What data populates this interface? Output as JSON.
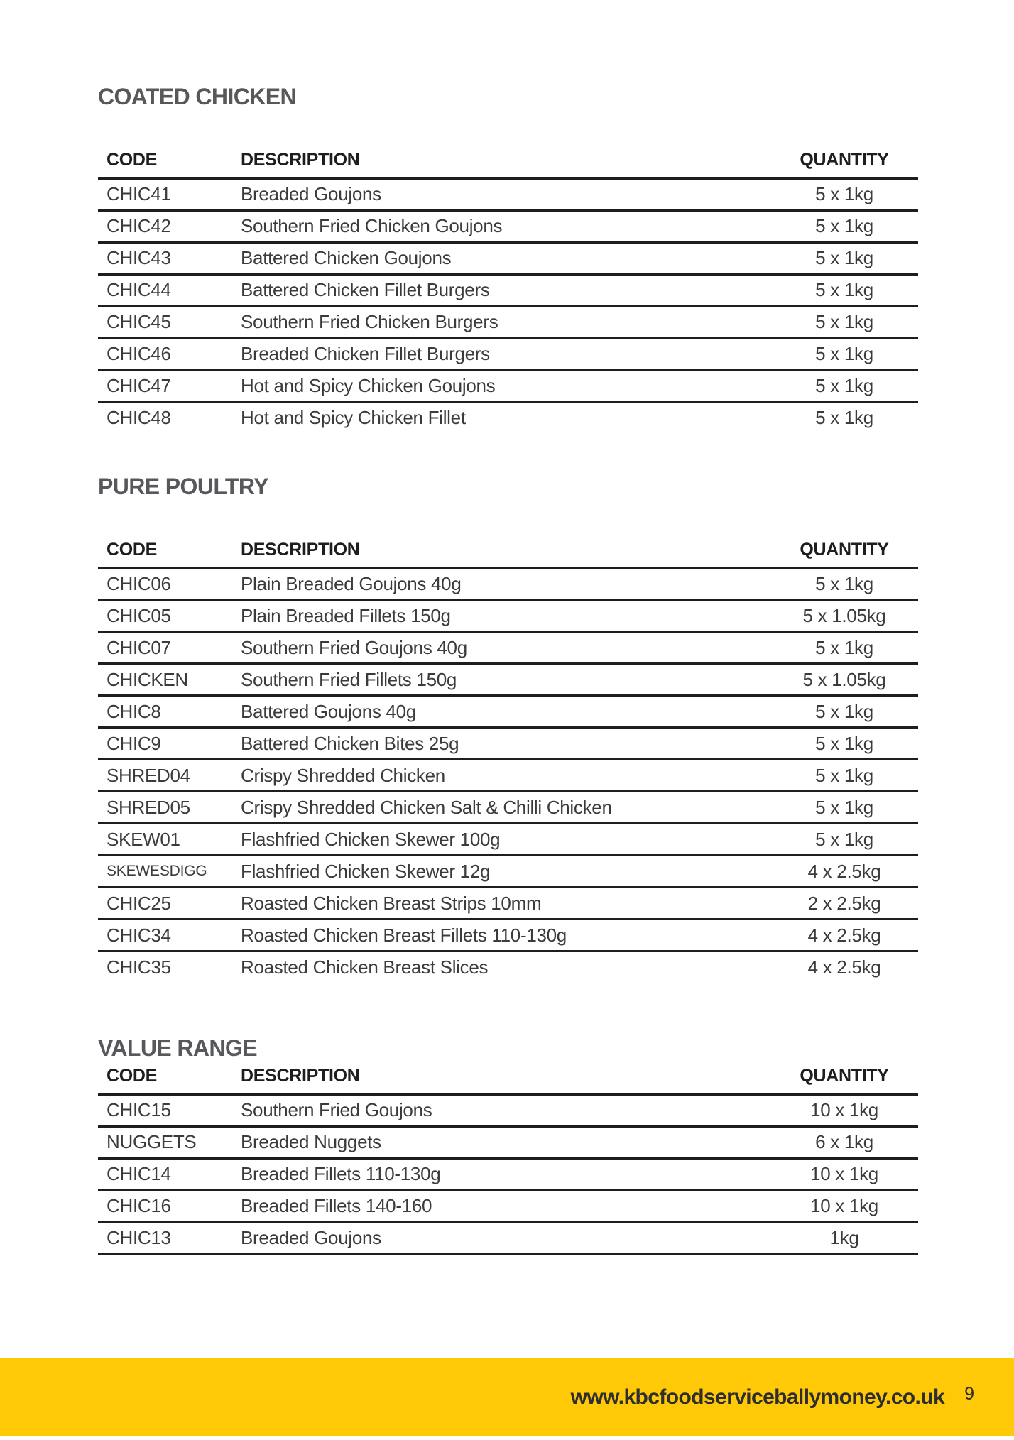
{
  "page": {
    "website": "www.kbcfoodserviceballymoney.co.uk",
    "number": "9",
    "accent_color": "#ffc907"
  },
  "columns": {
    "code": "CODE",
    "description": "DESCRIPTION",
    "quantity": "QUANTITY"
  },
  "sections": [
    {
      "title": "COATED CHICKEN",
      "last_row_divider": false,
      "rows": [
        {
          "code": "CHIC41",
          "description": "Breaded Goujons",
          "quantity": "5 x 1kg"
        },
        {
          "code": "CHIC42",
          "description": "Southern Fried Chicken Goujons",
          "quantity": "5 x 1kg"
        },
        {
          "code": "CHIC43",
          "description": "Battered Chicken Goujons",
          "quantity": "5 x 1kg"
        },
        {
          "code": "CHIC44",
          "description": "Battered Chicken Fillet Burgers",
          "quantity": "5 x 1kg"
        },
        {
          "code": "CHIC45",
          "description": "Southern Fried Chicken Burgers",
          "quantity": "5 x 1kg"
        },
        {
          "code": "CHIC46",
          "description": "Breaded Chicken Fillet Burgers",
          "quantity": "5 x 1kg"
        },
        {
          "code": "CHIC47",
          "description": "Hot and Spicy Chicken Goujons",
          "quantity": "5 x 1kg"
        },
        {
          "code": "CHIC48",
          "description": "Hot and Spicy Chicken Fillet",
          "quantity": "5 x 1kg"
        }
      ]
    },
    {
      "title": "PURE POULTRY",
      "last_row_divider": false,
      "rows": [
        {
          "code": "CHIC06",
          "description": "Plain Breaded Goujons 40g",
          "quantity": "5 x 1kg"
        },
        {
          "code": "CHIC05",
          "description": "Plain Breaded Fillets 150g",
          "quantity": "5 x 1.05kg"
        },
        {
          "code": "CHIC07",
          "description": "Southern Fried Goujons 40g",
          "quantity": "5 x 1kg"
        },
        {
          "code": "CHICKEN",
          "description": "Southern Fried Fillets 150g",
          "quantity": "5 x 1.05kg"
        },
        {
          "code": "CHIC8",
          "description": "Battered Goujons 40g",
          "quantity": "5 x 1kg"
        },
        {
          "code": "CHIC9",
          "description": "Battered Chicken Bites 25g",
          "quantity": "5 x 1kg"
        },
        {
          "code": "SHRED04",
          "description": "Crispy Shredded Chicken",
          "quantity": "5 x 1kg"
        },
        {
          "code": "SHRED05",
          "description": "Crispy Shredded Chicken Salt & Chilli Chicken",
          "quantity": "5 x 1kg"
        },
        {
          "code": "SKEW01",
          "description": "Flashfried Chicken Skewer 100g",
          "quantity": "5 x 1kg"
        },
        {
          "code": "SKEWESDIGG",
          "description": "Flashfried Chicken Skewer 12g",
          "quantity": "4 x 2.5kg"
        },
        {
          "code": "CHIC25",
          "description": "Roasted Chicken Breast Strips 10mm",
          "quantity": "2 x 2.5kg"
        },
        {
          "code": "CHIC34",
          "description": "Roasted Chicken Breast Fillets 110-130g",
          "quantity": "4 x 2.5kg"
        },
        {
          "code": "CHIC35",
          "description": "Roasted Chicken Breast Slices",
          "quantity": "4 x 2.5kg"
        }
      ]
    },
    {
      "title": "VALUE RANGE",
      "last_row_divider": true,
      "rows": [
        {
          "code": "CHIC15",
          "description": "Southern Fried Goujons",
          "quantity": "10 x 1kg"
        },
        {
          "code": "NUGGETS",
          "description": "Breaded Nuggets",
          "quantity": "6 x 1kg"
        },
        {
          "code": "CHIC14",
          "description": "Breaded Fillets 110-130g",
          "quantity": "10 x 1kg"
        },
        {
          "code": "CHIC16",
          "description": "Breaded Fillets 140-160",
          "quantity": "10 x 1kg"
        },
        {
          "code": "CHIC13",
          "description": "Breaded Goujons",
          "quantity": "1kg"
        }
      ]
    }
  ]
}
